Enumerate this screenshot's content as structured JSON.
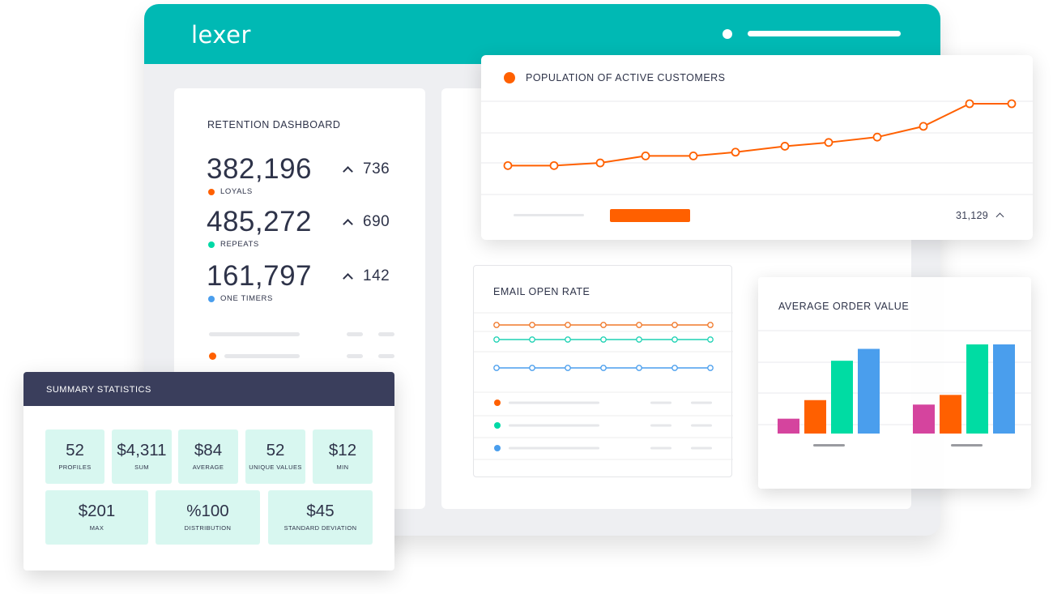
{
  "app": {
    "logo": "lexer"
  },
  "retention": {
    "title": "RETENTION DASHBOARD",
    "metrics": [
      {
        "value": "382,196",
        "label": "LOYALS",
        "change": "736",
        "color": "#ff6000"
      },
      {
        "value": "485,272",
        "label": "REPEATS",
        "change": "690",
        "color": "#00d9a6"
      },
      {
        "value": "161,797",
        "label": "ONE TIMERS",
        "change": "142",
        "color": "#4a9eed"
      }
    ]
  },
  "population": {
    "title": "POPULATION OF ACTIVE CUSTOMERS",
    "footer_value": "31,129",
    "color": "#ff6000",
    "points": [
      1,
      1,
      1.5,
      2.8,
      2.8,
      3.5,
      4.6,
      5.3,
      6.3,
      8.3,
      12.5,
      12.5
    ]
  },
  "email": {
    "title": "EMAIL OPEN RATE",
    "series_colors": [
      "#f0782a",
      "#1fd2b4",
      "#4a9eed"
    ],
    "legend_colors": [
      "#ff6000",
      "#00d9a6",
      "#4a9eed"
    ]
  },
  "aov": {
    "title": "AVERAGE ORDER VALUE",
    "groups": [
      {
        "values": [
          2,
          4.5,
          9.8,
          11.4
        ]
      },
      {
        "values": [
          3.9,
          5.2,
          12.0,
          12.0
        ]
      }
    ],
    "colors": [
      "#d5449e",
      "#ff6000",
      "#00dca3",
      "#4a9eed"
    ]
  },
  "summary": {
    "title": "SUMMARY STATISTICS",
    "tiles_row1": [
      {
        "value": "52",
        "label": "PROFILES"
      },
      {
        "value": "$4,311",
        "label": "SUM"
      },
      {
        "value": "$84",
        "label": "AVERAGE"
      },
      {
        "value": "52",
        "label": "UNIQUE VALUES"
      },
      {
        "value": "$12",
        "label": "MIN"
      }
    ],
    "tiles_row2": [
      {
        "value": "$201",
        "label": "MAX"
      },
      {
        "value": "%100",
        "label": "DISTRIBUTION"
      },
      {
        "value": "$45",
        "label": "STANDARD DEVIATION"
      }
    ]
  }
}
